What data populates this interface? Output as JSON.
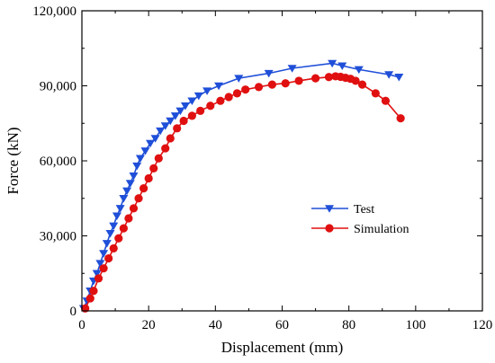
{
  "chart_data": {
    "type": "line",
    "title": "",
    "xlabel": "Displacement (mm)",
    "ylabel": "Force (kN)",
    "xlim": [
      0,
      120
    ],
    "ylim": [
      0,
      120000
    ],
    "xticks": [
      0,
      20,
      40,
      60,
      80,
      100,
      120
    ],
    "yticks": [
      0,
      30000,
      60000,
      90000,
      120000
    ],
    "xtick_labels": [
      "0",
      "20",
      "40",
      "60",
      "80",
      "100",
      "120"
    ],
    "ytick_labels": [
      "0",
      "30,000",
      "60,000",
      "90,000",
      "120,000"
    ],
    "grid": false,
    "legend_position": "center-right",
    "series": [
      {
        "name": "Test",
        "color": "#1f4fd8",
        "marker": "triangle-down",
        "x": [
          0.5,
          1.5,
          2.5,
          3.5,
          4.5,
          5.5,
          6.5,
          7.5,
          8.5,
          9.5,
          10.5,
          11.5,
          12.5,
          13.5,
          14.5,
          15.5,
          16.5,
          17.5,
          19,
          20.5,
          22,
          23.5,
          25,
          26.5,
          28,
          29.5,
          31,
          33,
          35,
          37.5,
          41,
          47,
          56,
          63,
          75,
          78,
          83,
          92,
          95
        ],
        "y": [
          1000,
          4000,
          8000,
          12000,
          15000,
          19000,
          23000,
          27000,
          31000,
          34000,
          38000,
          41000,
          45000,
          48000,
          51000,
          54000,
          58000,
          61000,
          64000,
          67000,
          69000,
          72000,
          74000,
          76000,
          78000,
          80000,
          82000,
          84000,
          86000,
          88000,
          90000,
          93000,
          95000,
          97000,
          99000,
          98000,
          96500,
          94500,
          93500
        ]
      },
      {
        "name": "Simulation",
        "color": "#e01010",
        "marker": "circle",
        "x": [
          1,
          2.5,
          3.5,
          5,
          6.5,
          8,
          9.5,
          11,
          12.5,
          14,
          15.5,
          17,
          18.5,
          20,
          21.5,
          23,
          25,
          26.5,
          28.5,
          30.5,
          33,
          35.5,
          38.5,
          41.5,
          44,
          46.5,
          49,
          53,
          57,
          61,
          65,
          70,
          74,
          76,
          77.5,
          79,
          80.5,
          82,
          84,
          88,
          91,
          95.5
        ],
        "y": [
          1000,
          5000,
          8000,
          13000,
          17000,
          21000,
          25000,
          29000,
          33000,
          37000,
          41000,
          45000,
          49000,
          53000,
          57000,
          61000,
          65000,
          69000,
          73000,
          76000,
          78000,
          80000,
          82000,
          84000,
          85500,
          87000,
          88500,
          89500,
          90500,
          91000,
          92000,
          93000,
          93500,
          93800,
          93600,
          93200,
          92800,
          92000,
          90500,
          87000,
          84000,
          77000
        ]
      }
    ]
  }
}
